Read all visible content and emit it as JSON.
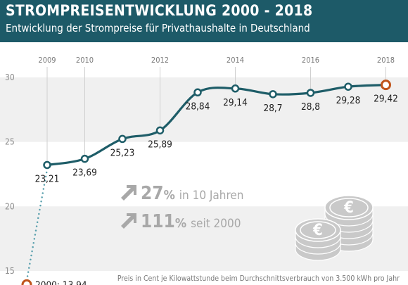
{
  "header": {
    "title": "STROMPREISENTWICKLUNG 2000 - 2018",
    "subtitle": "Entwicklung der Strompreise für Privathaushalte in Deutschland"
  },
  "colors": {
    "header_bg": "#1d5a68",
    "line": "#1e5d68",
    "accent": "#c0541b",
    "band": "#f0f0f0",
    "arrow_text": "#a8a8a8",
    "coin": "#c9c9c9"
  },
  "chart_data": {
    "type": "line",
    "x": [
      2000,
      2009,
      2010,
      2011,
      2012,
      2013,
      2014,
      2015,
      2016,
      2017,
      2018
    ],
    "values": [
      13.94,
      23.21,
      23.69,
      25.23,
      25.89,
      28.84,
      29.14,
      28.7,
      28.8,
      29.28,
      29.42
    ],
    "point_labels": [
      "2000: 13,94",
      "23,21",
      "23,69",
      "25,23",
      "25,89",
      "28,84",
      "29,14",
      "28,7",
      "28,8",
      "29,28",
      "29,42"
    ],
    "x_ticks": [
      "2009",
      "2010",
      "2012",
      "2014",
      "2016",
      "2018"
    ],
    "y_ticks": [
      "15",
      "20",
      "25",
      "30"
    ],
    "ylim": [
      15,
      30
    ],
    "grid": "alternating bands",
    "note": "Preis in Cent je Kilowattstunde beim Durchschnittsverbrauch von 3.500 kWh pro Jahr",
    "stats": [
      {
        "value": "27",
        "unit": "%",
        "text": "in 10 Jahren"
      },
      {
        "value": "111",
        "unit": "%",
        "text": "seit 2000"
      }
    ]
  },
  "icons": {
    "stat_arrow": "arrow-up-right-icon",
    "coins": "euro-coin-stack-icon"
  }
}
